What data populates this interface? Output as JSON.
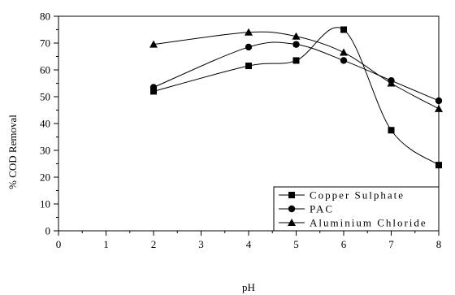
{
  "chart_data": {
    "type": "line",
    "title": "",
    "xlabel": "pH",
    "ylabel": "% COD Removal",
    "xlim": [
      0,
      8
    ],
    "ylim": [
      0,
      80
    ],
    "xticks": [
      "0",
      "1",
      "2",
      "3",
      "4",
      "5",
      "6",
      "7",
      "8"
    ],
    "yticks": [
      "0",
      "10",
      "20",
      "30",
      "40",
      "50",
      "60",
      "70",
      "80"
    ],
    "grid": false,
    "legend_position": "bottom-right",
    "series": [
      {
        "name": "Copper Sulphate",
        "marker": "square",
        "x": [
          2,
          4,
          5,
          6,
          7,
          8
        ],
        "y": [
          52,
          61.5,
          63.5,
          75,
          37.5,
          24.5
        ]
      },
      {
        "name": "PAC",
        "marker": "circle",
        "x": [
          2,
          4,
          5,
          6,
          7,
          8
        ],
        "y": [
          53.5,
          68.5,
          69.5,
          63.5,
          56,
          48.5
        ]
      },
      {
        "name": "Aluminium Chloride",
        "marker": "triangle",
        "x": [
          2,
          4,
          5,
          6,
          7,
          8
        ],
        "y": [
          69.5,
          74,
          72.5,
          66.5,
          55,
          45.5
        ]
      }
    ]
  }
}
